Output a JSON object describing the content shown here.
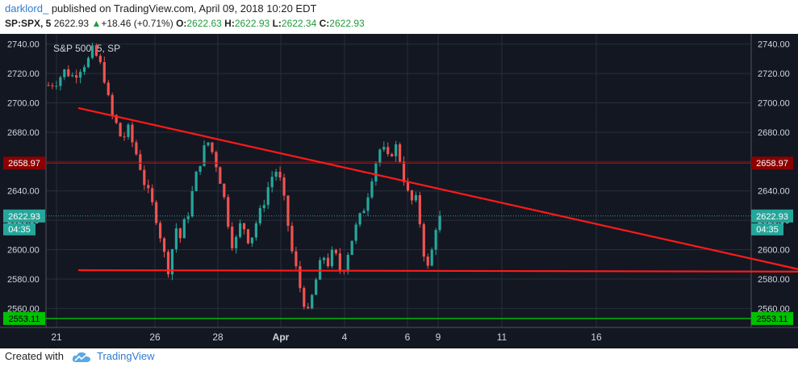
{
  "header": {
    "author": "darklord_",
    "published": "published on TradingView.com, April 09, 2018 10:20 EDT"
  },
  "quote": {
    "symbol": "SP:SPX, 5",
    "last": "2622.93",
    "change": "+18.46 (+0.71%)",
    "open_label": "O:",
    "open": "2622.63",
    "high_label": "H:",
    "high": "2622.93",
    "low_label": "L:",
    "low": "2622.34",
    "close_label": "C:",
    "close": "2622.93"
  },
  "footer": {
    "created_with": "Created with",
    "brand": "TradingView"
  },
  "colors": {
    "background": "#131722",
    "grid": "#2a2e39",
    "text": "#d1d4dc",
    "up": "#26a69a",
    "down": "#ef5350",
    "trendline": "#ff1a1a",
    "resistance_badge": "#8b0000",
    "support_badge": "#00c000",
    "price_badge": "#26a69a"
  },
  "chart_data": {
    "type": "candlestick",
    "legend_title": "S&P 500, 5, SP",
    "ylim": [
      2547,
      2747
    ],
    "y_ticks": [
      2560,
      2580,
      2600,
      2620,
      2640,
      2660,
      2680,
      2700,
      2720,
      2740
    ],
    "x_ticks": [
      {
        "label": "21",
        "bold": false
      },
      {
        "label": "26",
        "bold": false
      },
      {
        "label": "28",
        "bold": false
      },
      {
        "label": "Apr",
        "bold": true
      },
      {
        "label": "4",
        "bold": false
      },
      {
        "label": "6",
        "bold": false
      },
      {
        "label": "9",
        "bold": false
      },
      {
        "label": "11",
        "bold": false
      },
      {
        "label": "16",
        "bold": false
      }
    ],
    "price_path": [
      [
        0,
        2712
      ],
      [
        2,
        2715
      ],
      [
        4,
        2722
      ],
      [
        6,
        2718
      ],
      [
        8,
        2725
      ],
      [
        10,
        2730
      ],
      [
        11,
        2738
      ],
      [
        12,
        2728
      ],
      [
        13,
        2724
      ],
      [
        14,
        2712
      ],
      [
        15,
        2694
      ],
      [
        16,
        2688
      ],
      [
        17,
        2682
      ],
      [
        18,
        2672
      ],
      [
        19,
        2685
      ],
      [
        20,
        2676
      ],
      [
        21,
        2668
      ],
      [
        22,
        2660
      ],
      [
        23,
        2648
      ],
      [
        24,
        2640
      ],
      [
        25,
        2632
      ],
      [
        26,
        2624
      ],
      [
        27,
        2612
      ],
      [
        28,
        2598
      ],
      [
        29,
        2586
      ],
      [
        30,
        2600
      ],
      [
        31,
        2615
      ],
      [
        32,
        2608
      ],
      [
        33,
        2618
      ],
      [
        34,
        2626
      ],
      [
        35,
        2640
      ],
      [
        36,
        2652
      ],
      [
        37,
        2662
      ],
      [
        38,
        2670
      ],
      [
        39,
        2674
      ],
      [
        40,
        2664
      ],
      [
        41,
        2656
      ],
      [
        42,
        2644
      ],
      [
        43,
        2630
      ],
      [
        44,
        2612
      ],
      [
        45,
        2600
      ],
      [
        46,
        2612
      ],
      [
        47,
        2620
      ],
      [
        48,
        2610
      ],
      [
        49,
        2605
      ],
      [
        50,
        2616
      ],
      [
        51,
        2622
      ],
      [
        52,
        2630
      ],
      [
        53,
        2640
      ],
      [
        54,
        2648
      ],
      [
        55,
        2655
      ],
      [
        56,
        2650
      ],
      [
        57,
        2636
      ],
      [
        58,
        2620
      ],
      [
        59,
        2600
      ],
      [
        60,
        2588
      ],
      [
        61,
        2575
      ],
      [
        62,
        2565
      ],
      [
        63,
        2556
      ],
      [
        64,
        2568
      ],
      [
        65,
        2580
      ],
      [
        66,
        2590
      ],
      [
        67,
        2596
      ],
      [
        68,
        2590
      ],
      [
        69,
        2598
      ],
      [
        70,
        2594
      ],
      [
        71,
        2584
      ],
      [
        72,
        2590
      ],
      [
        73,
        2602
      ],
      [
        74,
        2610
      ],
      [
        75,
        2618
      ],
      [
        76,
        2624
      ],
      [
        77,
        2632
      ],
      [
        78,
        2644
      ],
      [
        79,
        2656
      ],
      [
        80,
        2665
      ],
      [
        81,
        2672
      ],
      [
        82,
        2660
      ],
      [
        83,
        2664
      ],
      [
        84,
        2672
      ],
      [
        85,
        2666
      ],
      [
        86,
        2652
      ],
      [
        87,
        2640
      ],
      [
        88,
        2632
      ],
      [
        89,
        2636
      ],
      [
        90,
        2622
      ],
      [
        91,
        2600
      ],
      [
        92,
        2586
      ],
      [
        93,
        2598
      ],
      [
        94,
        2616
      ],
      [
        95,
        2624
      ]
    ],
    "price_path_x_unit": "bar index (0 = Mar 20 session start, ~4 bars per session, last bar at price 2622.93)",
    "horizontal_lines": [
      {
        "name": "resistance",
        "value": 2658.97,
        "label": "2658.97",
        "color": "#cc0000"
      },
      {
        "name": "current",
        "value": 2622.93,
        "label": "2622.93",
        "color": "#26a69a",
        "countdown": "04:35"
      },
      {
        "name": "support",
        "value": 2553.11,
        "label": "2553.11",
        "color": "#00d000"
      }
    ],
    "trendlines": [
      {
        "from": [
          0,
          2696.5
        ],
        "to": [
          201,
          2586
        ],
        "note": "descending trendline"
      },
      {
        "from": [
          0,
          2586
        ],
        "to": [
          210,
          2585
        ],
        "note": "horizontal support"
      }
    ]
  }
}
